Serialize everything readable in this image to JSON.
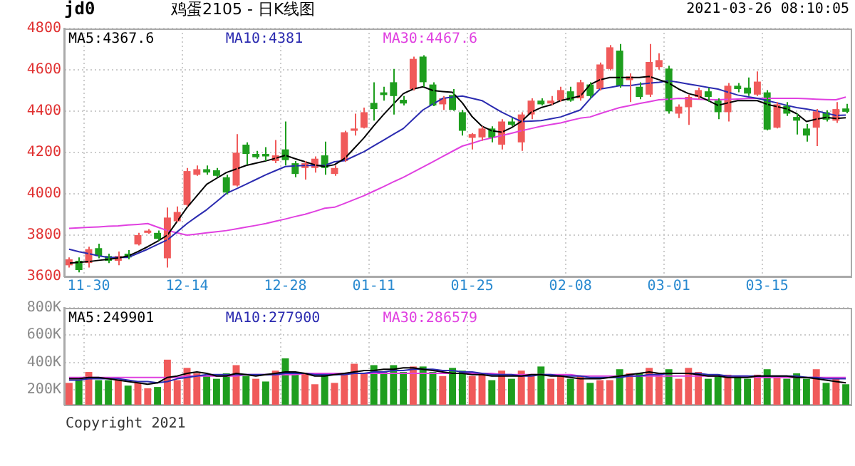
{
  "chart_data": [
    {
      "type": "candlestick",
      "title": "鸡蛋2105 - 日K线图",
      "annotations": [
        "jd0",
        "2021-03-26 08:10:05"
      ],
      "categories": [
        null,
        null,
        "11-30",
        null,
        null,
        null,
        null,
        null,
        null,
        null,
        null,
        null,
        "12-14",
        null,
        null,
        null,
        null,
        null,
        null,
        null,
        null,
        null,
        "12-28",
        null,
        null,
        null,
        null,
        null,
        null,
        null,
        null,
        "01-11",
        null,
        null,
        null,
        null,
        null,
        null,
        null,
        null,
        null,
        "01-25",
        null,
        null,
        null,
        null,
        null,
        null,
        null,
        null,
        null,
        "02-08",
        null,
        null,
        null,
        null,
        null,
        null,
        null,
        null,
        null,
        "03-01",
        null,
        null,
        null,
        null,
        null,
        null,
        null,
        null,
        null,
        "03-15",
        null,
        null,
        null,
        null,
        null,
        null,
        null,
        null
      ],
      "ohlc": [
        [
          3654,
          3692,
          3643,
          3683
        ],
        [
          3676,
          3692,
          3620,
          3631
        ],
        [
          3665,
          3744,
          3643,
          3732
        ],
        [
          3737,
          3759,
          3688,
          3699
        ],
        [
          3699,
          3710,
          3665,
          3676
        ],
        [
          3676,
          3721,
          3654,
          3699
        ],
        [
          3710,
          3728,
          3683,
          3692
        ],
        [
          3755,
          3811,
          3750,
          3800
        ],
        [
          3811,
          3829,
          3807,
          3822
        ],
        [
          3811,
          3822,
          3773,
          3782
        ],
        [
          3688,
          3934,
          3643,
          3885
        ],
        [
          3867,
          3939,
          3863,
          3912
        ],
        [
          3946,
          4125,
          3939,
          4110
        ],
        [
          4092,
          4137,
          4087,
          4119
        ],
        [
          4119,
          4137,
          4092,
          4103
        ],
        [
          4114,
          4125,
          4080,
          4087
        ],
        [
          4080,
          4092,
          3997,
          4006
        ],
        [
          4040,
          4289,
          4035,
          4199
        ],
        [
          4238,
          4249,
          4141,
          4193
        ],
        [
          4193,
          4208,
          4170,
          4177
        ],
        [
          4193,
          4226,
          4159,
          4181
        ],
        [
          4159,
          4260,
          4148,
          4186
        ],
        [
          4215,
          4350,
          4137,
          4163
        ],
        [
          4148,
          4159,
          4080,
          4096
        ],
        [
          4125,
          4159,
          4069,
          4148
        ],
        [
          4125,
          4181,
          4103,
          4170
        ],
        [
          4186,
          4253,
          4092,
          4125
        ],
        [
          4096,
          4137,
          4087,
          4125
        ],
        [
          4159,
          4305,
          4154,
          4298
        ],
        [
          4305,
          4388,
          4282,
          4316
        ],
        [
          4320,
          4417,
          4316,
          4395
        ],
        [
          4440,
          4540,
          4354,
          4410
        ],
        [
          4491,
          4518,
          4451,
          4478
        ],
        [
          4540,
          4604,
          4384,
          4473
        ],
        [
          4455,
          4473,
          4428,
          4437
        ],
        [
          4507,
          4664,
          4500,
          4653
        ],
        [
          4664,
          4671,
          4518,
          4540
        ],
        [
          4529,
          4540,
          4424,
          4428
        ],
        [
          4433,
          4473,
          4406,
          4462
        ],
        [
          4478,
          4507,
          4402,
          4406
        ],
        [
          4395,
          4406,
          4282,
          4305
        ],
        [
          4271,
          4294,
          4215,
          4289
        ],
        [
          4273,
          4327,
          4257,
          4316
        ],
        [
          4316,
          4327,
          4249,
          4271
        ],
        [
          4238,
          4361,
          4215,
          4350
        ],
        [
          4350,
          4366,
          4327,
          4334
        ],
        [
          4249,
          4395,
          4208,
          4384
        ],
        [
          4384,
          4462,
          4361,
          4451
        ],
        [
          4451,
          4462,
          4428,
          4433
        ],
        [
          4437,
          4473,
          4430,
          4451
        ],
        [
          4451,
          4518,
          4446,
          4502
        ],
        [
          4496,
          4518,
          4446,
          4451
        ],
        [
          4462,
          4552,
          4451,
          4540
        ],
        [
          4529,
          4540,
          4462,
          4473
        ],
        [
          4507,
          4635,
          4500,
          4626
        ],
        [
          4604,
          4720,
          4597,
          4709
        ],
        [
          4693,
          4725,
          4514,
          4523
        ],
        [
          4550,
          4583,
          4444,
          4568
        ],
        [
          4518,
          4540,
          4458,
          4469
        ],
        [
          4480,
          4725,
          4469,
          4638
        ],
        [
          4613,
          4680,
          4601,
          4647
        ],
        [
          4606,
          4620,
          4388,
          4399
        ],
        [
          4388,
          4433,
          4366,
          4422
        ],
        [
          4419,
          4480,
          4334,
          4469
        ],
        [
          4469,
          4514,
          4458,
          4502
        ],
        [
          4496,
          4514,
          4446,
          4469
        ],
        [
          4451,
          4462,
          4361,
          4395
        ],
        [
          4395,
          4536,
          4350,
          4523
        ],
        [
          4523,
          4536,
          4491,
          4507
        ],
        [
          4514,
          4563,
          4473,
          4485
        ],
        [
          4480,
          4592,
          4473,
          4543
        ],
        [
          4491,
          4502,
          4307,
          4311
        ],
        [
          4320,
          4444,
          4316,
          4433
        ],
        [
          4426,
          4444,
          4377,
          4388
        ],
        [
          4372,
          4388,
          4287,
          4354
        ],
        [
          4316,
          4338,
          4253,
          4282
        ],
        [
          4320,
          4410,
          4231,
          4399
        ],
        [
          4395,
          4404,
          4350,
          4359
        ],
        [
          4354,
          4444,
          4343,
          4410
        ],
        [
          4413,
          4435,
          4390,
          4397
        ]
      ],
      "colors": [
        "#f05a5a",
        "#1e9e1e",
        "#f05a5a",
        "#1e9e1e",
        "#1e9e1e",
        "#f05a5a",
        "#1e9e1e",
        "#f05a5a",
        "#f05a5a",
        "#1e9e1e",
        "#f05a5a",
        "#f05a5a",
        "#f05a5a",
        "#f05a5a",
        "#1e9e1e",
        "#1e9e1e",
        "#1e9e1e",
        "#f05a5a",
        "#1e9e1e",
        "#1e9e1e",
        "#1e9e1e",
        "#f05a5a",
        "#1e9e1e",
        "#1e9e1e",
        "#f05a5a",
        "#f05a5a",
        "#1e9e1e",
        "#f05a5a",
        "#f05a5a",
        "#f05a5a",
        "#f05a5a",
        "#1e9e1e",
        "#1e9e1e",
        "#1e9e1e",
        "#1e9e1e",
        "#f05a5a",
        "#1e9e1e",
        "#1e9e1e",
        "#f05a5a",
        "#1e9e1e",
        "#1e9e1e",
        "#f05a5a",
        "#f05a5a",
        "#1e9e1e",
        "#f05a5a",
        "#1e9e1e",
        "#f05a5a",
        "#f05a5a",
        "#1e9e1e",
        "#f05a5a",
        "#f05a5a",
        "#1e9e1e",
        "#f05a5a",
        "#1e9e1e",
        "#f05a5a",
        "#f05a5a",
        "#1e9e1e",
        "#f05a5a",
        "#1e9e1e",
        "#f05a5a",
        "#f05a5a",
        "#1e9e1e",
        "#f05a5a",
        "#f05a5a",
        "#f05a5a",
        "#1e9e1e",
        "#1e9e1e",
        "#f05a5a",
        "#1e9e1e",
        "#1e9e1e",
        "#f05a5a",
        "#1e9e1e",
        "#f05a5a",
        "#1e9e1e",
        "#1e9e1e",
        "#1e9e1e",
        "#f05a5a",
        "#1e9e1e",
        "#f05a5a",
        "#1e9e1e"
      ],
      "series": [
        {
          "type": "line",
          "name": "MA5:4367.6",
          "color": "#000000",
          "values": [
            3665,
            3668,
            3672,
            3678,
            3683,
            3690,
            3699,
            3720,
            3744,
            3770,
            3800,
            3867,
            3934,
            3990,
            4046,
            4075,
            4103,
            4120,
            4137,
            4148,
            4159,
            4172,
            4186,
            4170,
            4155,
            4140,
            4132,
            4141,
            4170,
            4220,
            4271,
            4330,
            4384,
            4435,
            4485,
            4507,
            4518,
            4500,
            4495,
            4491,
            4440,
            4373,
            4327,
            4305,
            4298,
            4320,
            4350,
            4395,
            4417,
            4430,
            4451,
            4462,
            4473,
            4529,
            4552,
            4563,
            4563,
            4563,
            4563,
            4568,
            4552,
            4536,
            4507,
            4485,
            4473,
            4451,
            4428,
            4440,
            4451,
            4451,
            4451,
            4433,
            4422,
            4411,
            4388,
            4350,
            4361,
            4370,
            4365,
            4368
          ]
        },
        {
          "type": "line",
          "name": "MA10:4381",
          "color": "#2b2bb0",
          "values": [
            3732,
            3720,
            3710,
            3700,
            3692,
            3692,
            3692,
            3712,
            3732,
            3755,
            3777,
            3816,
            3856,
            3890,
            3923,
            3962,
            4002,
            4024,
            4046,
            4069,
            4092,
            4112,
            4132,
            4135,
            4137,
            4137,
            4137,
            4155,
            4160,
            4182,
            4204,
            4232,
            4260,
            4288,
            4316,
            4361,
            4406,
            4434,
            4462,
            4468,
            4473,
            4462,
            4451,
            4423,
            4395,
            4372,
            4350,
            4352,
            4354,
            4363,
            4372,
            4389,
            4406,
            4460,
            4507,
            4515,
            4523,
            4523,
            4530,
            4535,
            4540,
            4547,
            4540,
            4531,
            4523,
            4515,
            4507,
            4492,
            4478,
            4470,
            4462,
            4451,
            4440,
            4428,
            4417,
            4410,
            4402,
            4390,
            4379,
            4381
          ]
        },
        {
          "type": "line",
          "name": "MA30:4467.6",
          "color": "#e040e0",
          "values": [
            3833,
            3835,
            3838,
            3840,
            3843,
            3845,
            3849,
            3852,
            3856,
            3839,
            3822,
            3811,
            3800,
            3805,
            3811,
            3816,
            3822,
            3830,
            3839,
            3847,
            3856,
            3867,
            3878,
            3890,
            3901,
            3915,
            3930,
            3935,
            3953,
            3972,
            3991,
            4013,
            4035,
            4058,
            4080,
            4105,
            4130,
            4155,
            4181,
            4206,
            4231,
            4245,
            4260,
            4271,
            4282,
            4293,
            4305,
            4316,
            4327,
            4335,
            4343,
            4355,
            4366,
            4372,
            4388,
            4403,
            4417,
            4427,
            4437,
            4446,
            4455,
            4458,
            4462,
            4460,
            4458,
            4456,
            4455,
            4457,
            4459,
            4461,
            4462,
            4462,
            4462,
            4462,
            4462,
            4460,
            4458,
            4456,
            4455,
            4468
          ]
        }
      ],
      "ylim": [
        3600,
        4800
      ],
      "yticks": [
        3600,
        3800,
        4000,
        4200,
        4400,
        4600,
        4800
      ],
      "grid": true,
      "legend": "top left"
    },
    {
      "type": "bar",
      "annotations": [
        "Copyright 2021"
      ],
      "categories": [
        null,
        null,
        null,
        null,
        null,
        null,
        null,
        null,
        null,
        null,
        null,
        null,
        null,
        null,
        null,
        null,
        null,
        null,
        null,
        null,
        null,
        null,
        null,
        null,
        null,
        null,
        null,
        null,
        null,
        null,
        null,
        null,
        null,
        null,
        null,
        null,
        null,
        null,
        null,
        null,
        null,
        null,
        null,
        null,
        null,
        null,
        null,
        null,
        null,
        null,
        null,
        null,
        null,
        null,
        null,
        null,
        null,
        null,
        null,
        null,
        null,
        null,
        null,
        null,
        null,
        null,
        null,
        null,
        null,
        null,
        null,
        null,
        null,
        null,
        null,
        null,
        null,
        null,
        null,
        null
      ],
      "series": [
        {
          "values": [
            250000,
            270000,
            330000,
            270000,
            270000,
            270000,
            230000,
            250000,
            210000,
            220000,
            420000,
            270000,
            360000,
            320000,
            300000,
            280000,
            320000,
            380000,
            300000,
            280000,
            260000,
            340000,
            430000,
            320000,
            320000,
            240000,
            320000,
            250000,
            320000,
            390000,
            320000,
            380000,
            330000,
            380000,
            330000,
            370000,
            370000,
            330000,
            300000,
            360000,
            340000,
            300000,
            320000,
            270000,
            340000,
            280000,
            340000,
            300000,
            370000,
            280000,
            310000,
            280000,
            300000,
            250000,
            270000,
            270000,
            350000,
            320000,
            320000,
            360000,
            320000,
            350000,
            280000,
            360000,
            330000,
            280000,
            300000,
            310000,
            300000,
            280000,
            310000,
            350000,
            300000,
            280000,
            320000,
            280000,
            350000,
            250000,
            280000,
            240000
          ],
          "colors": [
            "#f05a5a",
            "#1e9e1e",
            "#f05a5a",
            "#1e9e1e",
            "#1e9e1e",
            "#f05a5a",
            "#1e9e1e",
            "#f05a5a",
            "#f05a5a",
            "#1e9e1e",
            "#f05a5a",
            "#f05a5a",
            "#f05a5a",
            "#f05a5a",
            "#1e9e1e",
            "#1e9e1e",
            "#1e9e1e",
            "#f05a5a",
            "#1e9e1e",
            "#f05a5a",
            "#1e9e1e",
            "#f05a5a",
            "#1e9e1e",
            "#1e9e1e",
            "#f05a5a",
            "#f05a5a",
            "#1e9e1e",
            "#f05a5a",
            "#f05a5a",
            "#f05a5a",
            "#f05a5a",
            "#1e9e1e",
            "#1e9e1e",
            "#1e9e1e",
            "#1e9e1e",
            "#f05a5a",
            "#1e9e1e",
            "#1e9e1e",
            "#f05a5a",
            "#1e9e1e",
            "#1e9e1e",
            "#f05a5a",
            "#f05a5a",
            "#1e9e1e",
            "#f05a5a",
            "#1e9e1e",
            "#f05a5a",
            "#f05a5a",
            "#1e9e1e",
            "#f05a5a",
            "#f05a5a",
            "#1e9e1e",
            "#f05a5a",
            "#1e9e1e",
            "#f05a5a",
            "#f05a5a",
            "#1e9e1e",
            "#f05a5a",
            "#1e9e1e",
            "#f05a5a",
            "#f05a5a",
            "#1e9e1e",
            "#f05a5a",
            "#f05a5a",
            "#f05a5a",
            "#1e9e1e",
            "#1e9e1e",
            "#f05a5a",
            "#1e9e1e",
            "#1e9e1e",
            "#f05a5a",
            "#1e9e1e",
            "#f05a5a",
            "#1e9e1e",
            "#1e9e1e",
            "#1e9e1e",
            "#f05a5a",
            "#1e9e1e",
            "#f05a5a",
            "#1e9e1e"
          ]
        },
        {
          "type": "line",
          "name": "MA5:249901",
          "color": "#000000",
          "values": [
            280000,
            280000,
            290000,
            290000,
            280000,
            270000,
            260000,
            250000,
            240000,
            250000,
            290000,
            300000,
            320000,
            330000,
            320000,
            300000,
            300000,
            320000,
            310000,
            300000,
            310000,
            320000,
            330000,
            330000,
            320000,
            300000,
            300000,
            310000,
            320000,
            330000,
            340000,
            340000,
            350000,
            350000,
            360000,
            360000,
            350000,
            340000,
            330000,
            320000,
            320000,
            310000,
            310000,
            300000,
            300000,
            300000,
            300000,
            310000,
            310000,
            300000,
            300000,
            290000,
            280000,
            280000,
            280000,
            290000,
            300000,
            310000,
            320000,
            330000,
            320000,
            320000,
            320000,
            320000,
            310000,
            300000,
            300000,
            290000,
            290000,
            290000,
            300000,
            300000,
            300000,
            300000,
            290000,
            290000,
            280000,
            270000,
            260000,
            250000
          ]
        },
        {
          "type": "line",
          "name": "MA10:277900",
          "color": "#2b2bb0",
          "values": [
            270000,
            270000,
            280000,
            280000,
            280000,
            280000,
            270000,
            260000,
            260000,
            250000,
            260000,
            280000,
            290000,
            300000,
            310000,
            310000,
            310000,
            310000,
            310000,
            310000,
            310000,
            310000,
            320000,
            320000,
            320000,
            310000,
            310000,
            310000,
            310000,
            320000,
            320000,
            330000,
            330000,
            340000,
            340000,
            350000,
            350000,
            350000,
            340000,
            340000,
            330000,
            330000,
            320000,
            310000,
            310000,
            310000,
            300000,
            300000,
            310000,
            310000,
            300000,
            300000,
            300000,
            290000,
            290000,
            290000,
            290000,
            300000,
            300000,
            310000,
            310000,
            320000,
            320000,
            320000,
            320000,
            310000,
            310000,
            300000,
            300000,
            300000,
            300000,
            300000,
            300000,
            300000,
            300000,
            290000,
            290000,
            280000,
            280000,
            280000
          ]
        },
        {
          "type": "line",
          "name": "MA30:286579",
          "color": "#e040e0",
          "values": [
            290000,
            290000,
            290000,
            290000,
            290000,
            290000,
            290000,
            290000,
            290000,
            290000,
            290000,
            290000,
            300000,
            300000,
            300000,
            300000,
            300000,
            300000,
            310000,
            310000,
            310000,
            310000,
            310000,
            310000,
            320000,
            320000,
            320000,
            320000,
            320000,
            320000,
            320000,
            320000,
            320000,
            320000,
            320000,
            320000,
            320000,
            320000,
            320000,
            320000,
            320000,
            320000,
            320000,
            320000,
            310000,
            310000,
            310000,
            310000,
            310000,
            310000,
            310000,
            310000,
            300000,
            300000,
            300000,
            300000,
            300000,
            300000,
            300000,
            300000,
            300000,
            300000,
            300000,
            300000,
            300000,
            300000,
            300000,
            300000,
            300000,
            300000,
            290000,
            290000,
            290000,
            290000,
            290000,
            290000,
            290000,
            290000,
            290000,
            290000
          ]
        }
      ],
      "ylim": [
        90000,
        800000
      ],
      "yticks": [
        {
          "value": 200000,
          "label": "200K"
        },
        {
          "value": 400000,
          "label": "400K"
        },
        {
          "value": 600000,
          "label": "600K"
        },
        {
          "value": 800000,
          "label": "800K"
        }
      ],
      "grid": true,
      "legend": "top left",
      "tick_labels": "y"
    }
  ]
}
